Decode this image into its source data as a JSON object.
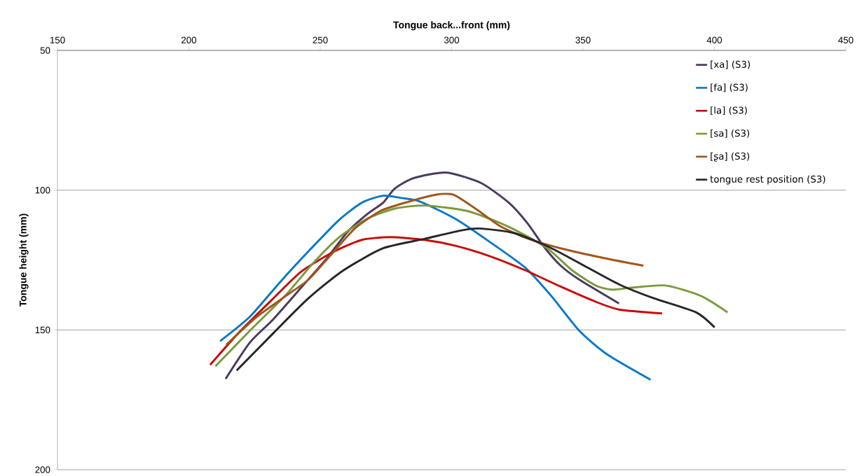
{
  "chart_data": {
    "type": "line",
    "xlabel": "Tongue back...front (mm)",
    "ylabel": "Tongue height (mm)",
    "xlim": [
      150,
      450
    ],
    "xticks": [
      150,
      200,
      250,
      300,
      350,
      400,
      450
    ],
    "ylim": [
      200,
      50
    ],
    "yticks": [
      50,
      100,
      150,
      200
    ],
    "grid": "y",
    "legend": "top right",
    "marker": "none",
    "line_style": "solid",
    "series": [
      {
        "name": "[xa] (S3)",
        "color": "#4a3a60",
        "x": [
          214,
          223.2,
          232.1,
          242.7,
          252.4,
          260.4,
          267.7,
          273.9,
          278.3,
          285.5,
          297.9,
          311.1,
          321.8,
          329,
          335.2,
          341.5,
          348.6,
          363.7
        ],
        "values": [
          167.5,
          154.5,
          146.2,
          134.9,
          124.5,
          114.9,
          108.7,
          104.5,
          99.5,
          95.7,
          93.7,
          97.4,
          104.5,
          112,
          120.3,
          127,
          132,
          140.5
        ]
      },
      {
        "name": "[fa] (S3)",
        "color": "#0a78c8",
        "x": [
          211.9,
          223.2,
          234.8,
          246.2,
          257,
          265.8,
          273.9,
          281,
          288.1,
          301.5,
          314.8,
          328.1,
          337.9,
          348.6,
          359.1,
          375.7
        ],
        "values": [
          154,
          145.3,
          132.8,
          121.2,
          110.8,
          104.5,
          102,
          102.8,
          104.1,
          110.3,
          118.7,
          127.8,
          137.8,
          150.3,
          158.7,
          167.8
        ]
      },
      {
        "name": "[la] (S3)",
        "color": "#c80a0a",
        "x": [
          208.1,
          218.8,
          231.3,
          242.8,
          255.2,
          265.8,
          276.5,
          289.8,
          301.5,
          314.8,
          328.1,
          341.5,
          354.8,
          363.7,
          380.1
        ],
        "values": [
          162.5,
          151.2,
          139.5,
          129.1,
          122,
          117.8,
          116.8,
          117.8,
          119.9,
          123.7,
          128.7,
          134.5,
          139.9,
          142.7,
          144.1
        ]
      },
      {
        "name": "[sa] (S3)",
        "color": "#7a9a3e",
        "x": [
          210.1,
          223.2,
          236.6,
          247.2,
          257,
          267.7,
          278.4,
          289.8,
          305.8,
          319.1,
          328.1,
          337,
          345.9,
          354.8,
          361,
          368.3,
          381.5,
          394.8,
          405
        ],
        "values": [
          163,
          150.3,
          137.8,
          126.2,
          117,
          110.3,
          106.6,
          105.5,
          107.4,
          112,
          116.2,
          121.2,
          128.7,
          134.1,
          135.6,
          134.9,
          134.1,
          137.8,
          143.7
        ]
      },
      {
        "name": "[ʂa] (S3)",
        "color": "#a0561a",
        "x": [
          214.2,
          225.9,
          238.2,
          245.5,
          254.4,
          263.2,
          273,
          283.7,
          294.2,
          299.7,
          302.3,
          310.3,
          318.3,
          328.1,
          341.5,
          359.1,
          373
        ],
        "values": [
          155.3,
          145.3,
          137,
          132,
          122.8,
          113.7,
          107.4,
          104.1,
          101.6,
          101.4,
          102.4,
          107.4,
          112.8,
          117,
          120.8,
          124.5,
          127
        ]
      },
      {
        "name": "tongue rest position (S3)",
        "color": "#262626",
        "x": [
          218.2,
          232.1,
          245.5,
          258.8,
          273.9,
          289.8,
          303.1,
          310.3,
          323.6,
          337,
          350.4,
          363.7,
          377,
          393,
          400.1
        ],
        "values": [
          164.5,
          151.2,
          138.7,
          128.7,
          120.8,
          117.4,
          114.5,
          113.7,
          115.3,
          120.3,
          127,
          133.7,
          138.7,
          143.7,
          149.1
        ]
      }
    ]
  }
}
